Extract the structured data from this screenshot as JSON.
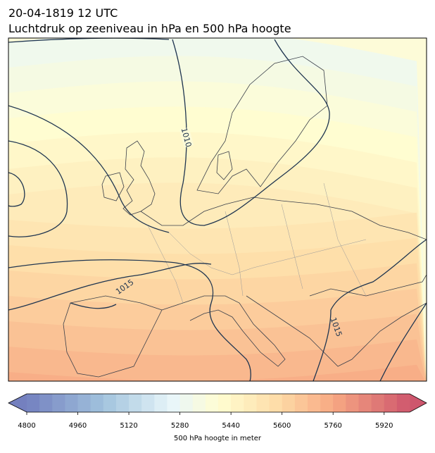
{
  "header": {
    "date": "20-04-1819 12 UTC",
    "title": "Luchtdruk op zeeniveau in hPa en 500 hPa hoogte"
  },
  "contour_labels": [
    "1010",
    "1015",
    "1015"
  ],
  "colorbar": {
    "min": 4800,
    "max": 6000,
    "step": 40,
    "ticks": [
      4800,
      4960,
      5120,
      5280,
      5440,
      5600,
      5760,
      5920
    ],
    "label": "500 hPa hoogte in meter"
  }
}
